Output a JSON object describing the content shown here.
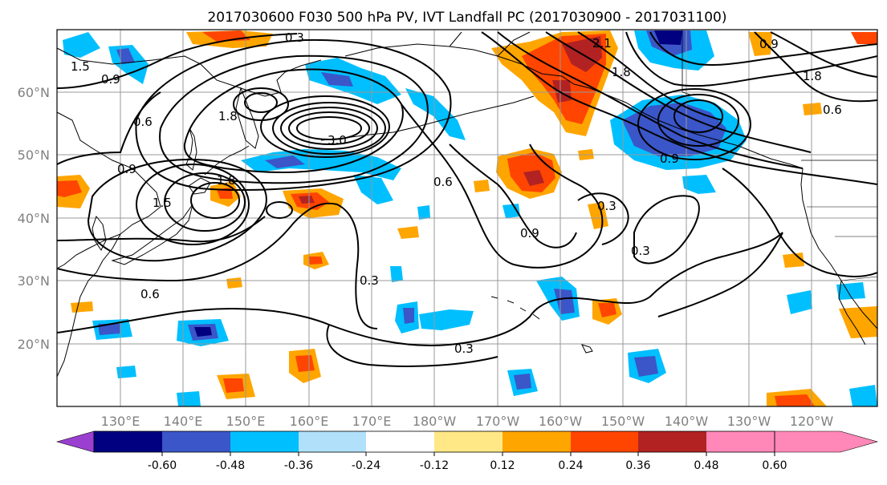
{
  "title": "2017030600 F030 500 hPa PV, IVT Landfall PC (2017030900 - 2017031100)",
  "lat_labels": [
    "20°N",
    "30°N",
    "40°N",
    "50°N",
    "60°N"
  ],
  "lon_labels": [
    "130°E",
    "140°E",
    "150°E",
    "160°E",
    "170°E",
    "180°W",
    "170°W",
    "160°W",
    "150°W",
    "140°W",
    "130°W",
    "120°W"
  ],
  "contour_labels": [
    "0.3",
    "2.1",
    "1.5",
    "0.9",
    "1.8",
    "0.6",
    "0.9",
    "1.8",
    "3.0",
    "0.9",
    "1.5",
    "1.8",
    "0.6",
    "0.6",
    "0.3",
    "0.9",
    "0.3",
    "0.3",
    "0.3",
    "0.9",
    "1.8",
    "0.6"
  ],
  "colorbar": {
    "colors": [
      "#9a3fd0",
      "#000080",
      "#3a56c8",
      "#00bfff",
      "#b0e0fa",
      "#ffffff",
      "#ffe885",
      "#ffa500",
      "#ff4500",
      "#b22222",
      "#ff88b8"
    ],
    "tick_labels": [
      "-0.60",
      "-0.48",
      "-0.36",
      "-0.24",
      "-0.12",
      "0.12",
      "0.24",
      "0.36",
      "0.48",
      "0.60"
    ]
  },
  "colors": {
    "contour": "#000000",
    "coast": "#000000",
    "grid": "#999999",
    "axis_label": "#808080"
  }
}
